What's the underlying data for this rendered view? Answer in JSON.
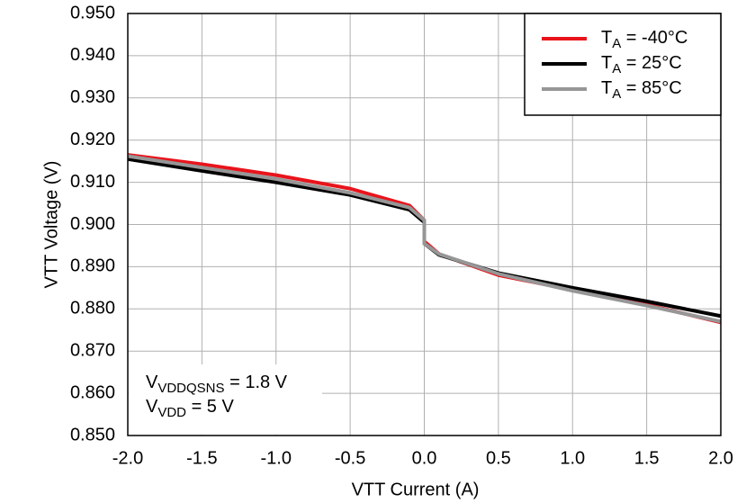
{
  "chart_data": {
    "type": "line",
    "x_label": "VTT Current (A)",
    "y_label": "VTT Voltage (V)",
    "xlim": [
      -2.0,
      2.0
    ],
    "ylim": [
      0.85,
      0.95
    ],
    "xticks": [
      {
        "value": -2,
        "label": "-2.0"
      },
      -1.5,
      {
        "value": -1,
        "label": "-1.0"
      },
      -0.5,
      {
        "value": 0,
        "label": "0.0"
      },
      0.5,
      {
        "value": 1,
        "label": "1.0"
      },
      1.5,
      {
        "value": 2,
        "label": "2.0"
      }
    ],
    "yticks": [
      {
        "value": 0.85,
        "label": "0.850"
      },
      {
        "value": 0.86,
        "label": "0.860"
      },
      {
        "value": 0.87,
        "label": "0.870"
      },
      {
        "value": 0.88,
        "label": "0.880"
      },
      {
        "value": 0.89,
        "label": "0.890"
      },
      {
        "value": 0.9,
        "label": "0.900"
      },
      {
        "value": 0.91,
        "label": "0.910"
      },
      {
        "value": 0.92,
        "label": "0.920"
      },
      {
        "value": 0.93,
        "label": "0.930"
      },
      {
        "value": 0.94,
        "label": "0.940"
      },
      {
        "value": 0.95,
        "label": "0.950"
      }
    ],
    "grid": true,
    "legend": "upper right",
    "x": [
      -2.0,
      -1.5,
      -1.0,
      -0.5,
      -0.1,
      0.0,
      0.0,
      0.1,
      0.5,
      1.0,
      1.5,
      2.0
    ],
    "series": [
      {
        "name": "TA = -40°C",
        "color": "#e8141c",
        "values": [
          0.9165,
          0.9143,
          0.9117,
          0.9085,
          0.9045,
          0.901,
          0.896,
          0.893,
          0.888,
          0.8845,
          0.881,
          0.8768
        ]
      },
      {
        "name": "TA = 25°C",
        "color": "#000000",
        "values": [
          0.9155,
          0.9127,
          0.91,
          0.907,
          0.9035,
          0.9005,
          0.8955,
          0.8928,
          0.8885,
          0.885,
          0.8818,
          0.8783
        ]
      },
      {
        "name": "TA = 85°C",
        "color": "#969696",
        "values": [
          0.9162,
          0.9135,
          0.9108,
          0.9075,
          0.904,
          0.901,
          0.8955,
          0.893,
          0.8883,
          0.8843,
          0.8808,
          0.877
        ]
      }
    ],
    "annotations": [
      [
        "V",
        "VDDQSNS",
        " = 1.8 V"
      ],
      [
        "V",
        "VDD",
        " = 5 V"
      ]
    ]
  }
}
